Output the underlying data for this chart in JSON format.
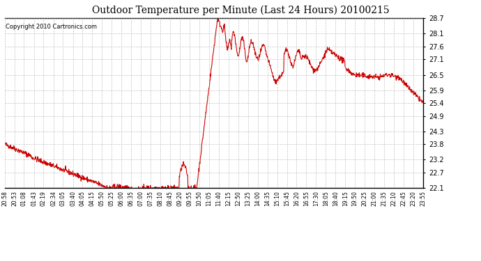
{
  "title": "Outdoor Temperature per Minute (Last 24 Hours) 20100215",
  "copyright_text": "Copyright 2010 Cartronics.com",
  "line_color": "#cc0000",
  "background_color": "#ffffff",
  "grid_color": "#aaaaaa",
  "ylim": [
    22.1,
    28.7
  ],
  "yticks": [
    22.1,
    22.7,
    23.2,
    23.8,
    24.3,
    24.9,
    25.4,
    25.9,
    26.5,
    27.1,
    27.6,
    28.1,
    28.7
  ],
  "x_tick_labels": [
    "20:58",
    "20:53",
    "01:08",
    "01:43",
    "02:19",
    "02:34",
    "03:05",
    "03:40",
    "04:05",
    "04:15",
    "05:50",
    "05:25",
    "06:00",
    "06:35",
    "07:00",
    "07:35",
    "08:10",
    "08:45",
    "09:20",
    "09:55",
    "10:50",
    "11:05",
    "11:40",
    "12:15",
    "12:50",
    "13:25",
    "14:00",
    "14:35",
    "15:10",
    "15:45",
    "16:20",
    "16:55",
    "17:30",
    "18:05",
    "18:40",
    "19:15",
    "19:50",
    "20:25",
    "21:00",
    "21:35",
    "22:10",
    "22:45",
    "23:20",
    "23:55"
  ],
  "n_points": 1440
}
